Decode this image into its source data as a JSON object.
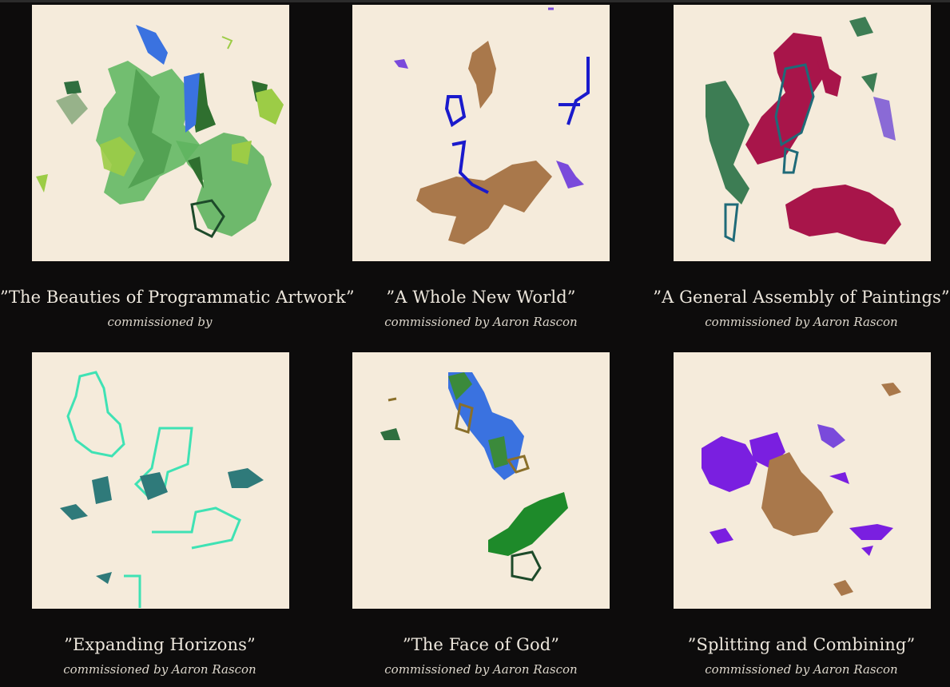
{
  "gallery": {
    "items": [
      {
        "title": "”The Beauties of Programmatic Artwork”",
        "subtitle": "commissioned by"
      },
      {
        "title": "”A Whole New World”",
        "subtitle": "commissioned by Aaron Rascon"
      },
      {
        "title": "”A General Assembly of Paintings”",
        "subtitle": "commissioned by Aaron Rascon"
      },
      {
        "title": "”Expanding Horizons”",
        "subtitle": "commissioned by Aaron Rascon"
      },
      {
        "title": "”The Face of God”",
        "subtitle": "commissioned by Aaron Rascon"
      },
      {
        "title": "”Splitting and Combining”",
        "subtitle": "commissioned by Aaron Rascon"
      }
    ]
  },
  "colors": {
    "page_background": "#0d0c0c",
    "canvas_background": "#f5ebdb",
    "text": "#ece6dc"
  }
}
